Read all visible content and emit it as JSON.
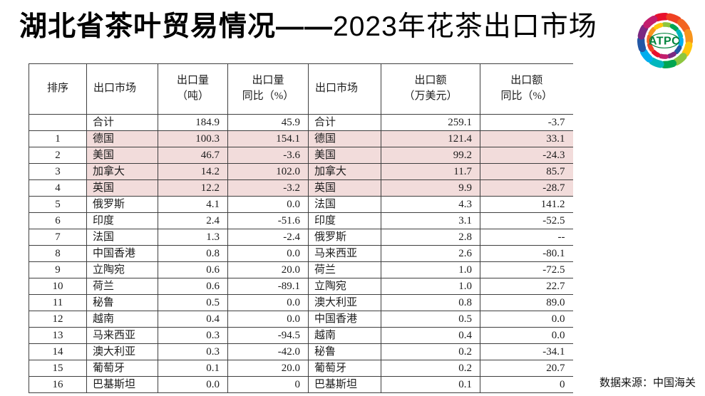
{
  "title": {
    "bold": "湖北省茶叶贸易情况——",
    "light": "2023年花茶出口市场"
  },
  "logo": {
    "text": "ATPC",
    "text_color": "#00843d",
    "petal_colors": [
      "#e8112d",
      "#ef4123",
      "#f26522",
      "#f7941d",
      "#ffc60b",
      "#8dc63f",
      "#00a651",
      "#00b7bd",
      "#00adee",
      "#2257a5",
      "#7b2982",
      "#c21e6e"
    ]
  },
  "table": {
    "highlight_color": "#f2dcdb",
    "headers": [
      {
        "line1": "排序",
        "line2": ""
      },
      {
        "line1": "出口市场",
        "line2": ""
      },
      {
        "line1": "出口量",
        "line2": "（吨）"
      },
      {
        "line1": "出口量",
        "line2": "同比（%）"
      },
      {
        "line1": "出口市场",
        "line2": ""
      },
      {
        "line1": "出口额",
        "line2": "（万美元）"
      },
      {
        "line1": "出口额",
        "line2": "同比（%）"
      }
    ],
    "rows": [
      {
        "highlight": false,
        "cells": [
          "",
          "合计",
          "184.9",
          "45.9",
          "合计",
          "259.1",
          "-3.7"
        ]
      },
      {
        "highlight": true,
        "cells": [
          "1",
          "德国",
          "100.3",
          "154.1",
          "德国",
          "121.4",
          "33.1"
        ]
      },
      {
        "highlight": true,
        "cells": [
          "2",
          "美国",
          "46.7",
          "-3.6",
          "美国",
          "99.2",
          "-24.3"
        ]
      },
      {
        "highlight": true,
        "cells": [
          "3",
          "加拿大",
          "14.2",
          "102.0",
          "加拿大",
          "11.7",
          "85.7"
        ]
      },
      {
        "highlight": true,
        "cells": [
          "4",
          "英国",
          "12.2",
          "-3.2",
          "英国",
          "9.9",
          "-28.7"
        ]
      },
      {
        "highlight": false,
        "cells": [
          "5",
          "俄罗斯",
          "4.1",
          "0.0",
          "法国",
          "4.3",
          "141.2"
        ]
      },
      {
        "highlight": false,
        "cells": [
          "6",
          "印度",
          "2.4",
          "-51.6",
          "印度",
          "3.1",
          "-52.5"
        ]
      },
      {
        "highlight": false,
        "cells": [
          "7",
          "法国",
          "1.3",
          "-2.4",
          "俄罗斯",
          "2.8",
          "--"
        ]
      },
      {
        "highlight": false,
        "cells": [
          "8",
          "中国香港",
          "0.8",
          "0.0",
          "马来西亚",
          "2.6",
          "-80.1"
        ]
      },
      {
        "highlight": false,
        "cells": [
          "9",
          "立陶宛",
          "0.6",
          "20.0",
          "荷兰",
          "1.0",
          "-72.5"
        ]
      },
      {
        "highlight": false,
        "cells": [
          "10",
          "荷兰",
          "0.6",
          "-89.1",
          "立陶宛",
          "1.0",
          "22.7"
        ]
      },
      {
        "highlight": false,
        "cells": [
          "11",
          "秘鲁",
          "0.5",
          "0.0",
          "澳大利亚",
          "0.8",
          "89.0"
        ]
      },
      {
        "highlight": false,
        "cells": [
          "12",
          "越南",
          "0.4",
          "0.0",
          "中国香港",
          "0.5",
          "0.0"
        ]
      },
      {
        "highlight": false,
        "cells": [
          "13",
          "马来西亚",
          "0.3",
          "-94.5",
          "越南",
          "0.4",
          "0.0"
        ]
      },
      {
        "highlight": false,
        "cells": [
          "14",
          "澳大利亚",
          "0.3",
          "-42.0",
          "秘鲁",
          "0.2",
          "-34.1"
        ]
      },
      {
        "highlight": false,
        "cells": [
          "15",
          "葡萄牙",
          "0.1",
          "20.0",
          "葡萄牙",
          "0.2",
          "20.7"
        ]
      },
      {
        "highlight": false,
        "cells": [
          "16",
          "巴基斯坦",
          "0.0",
          "0",
          "巴基斯坦",
          "0.1",
          "0"
        ]
      }
    ]
  },
  "footer": {
    "source": "数据来源：中国海关"
  }
}
